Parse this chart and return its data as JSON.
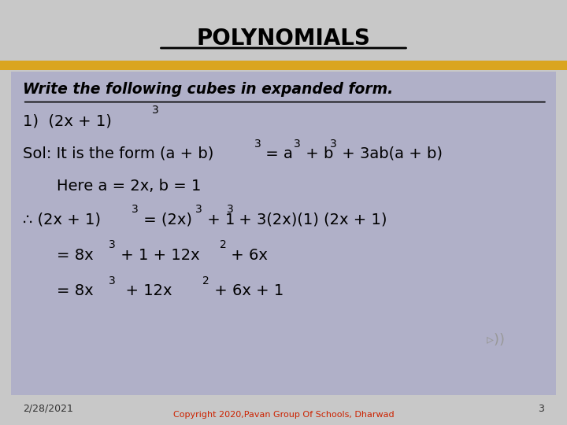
{
  "title": "POLYNOMIALS",
  "header_bg": "#c8c8c8",
  "gold_bar_color": "#DAA520",
  "content_bg": "#b0b0c8",
  "title_color": "#000000",
  "text_color": "#000000",
  "footer_text": "Copyright 2020,Pavan Group Of Schools, Dharwad",
  "footer_date": "2/28/2021",
  "footer_page": "3"
}
